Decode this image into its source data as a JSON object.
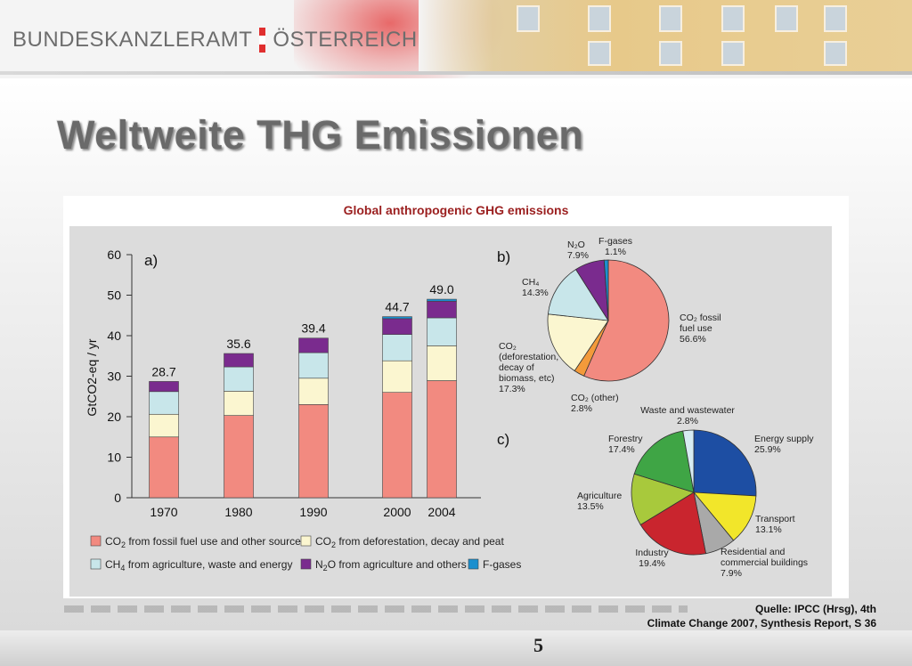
{
  "header": {
    "brand_left": "BUNDESKANZLERAMT",
    "brand_right": "ÖSTERREICH",
    "flag_colors": [
      "#e02f2f",
      "#ffffff",
      "#e02f2f"
    ]
  },
  "slide": {
    "title": "Weltweite THG Emissionen",
    "source_line1": "Quelle: IPCC (Hrsg), 4th",
    "source_line2": "Climate Change 2007, Synthesis Report, S 36",
    "page_number": "5"
  },
  "figure_title": "Global anthropogenic GHG emissions",
  "chart_data": [
    {
      "type": "bar",
      "panel_label": "a)",
      "ylabel": "GtCO2-eq / yr",
      "ylim": [
        0,
        60
      ],
      "yticks": [
        0,
        10,
        20,
        30,
        40,
        50,
        60
      ],
      "categories": [
        "1970",
        "1980",
        "1990",
        "2000",
        "2004"
      ],
      "stacked": true,
      "totals": [
        "28.7",
        "35.6",
        "39.4",
        "44.7",
        "49.0"
      ],
      "series": [
        {
          "name": "CO2 from fossil fuel use and other sources",
          "color": "#f28a80",
          "values": [
            15.0,
            20.3,
            23.0,
            26.0,
            28.9
          ]
        },
        {
          "name": "CO2 from deforestation, decay and peat",
          "color": "#fbf6d0",
          "values": [
            5.6,
            6.0,
            6.5,
            7.8,
            8.6
          ]
        },
        {
          "name": "CH4 from agriculture, waste and energy",
          "color": "#c8e6ea",
          "values": [
            5.6,
            6.0,
            6.3,
            6.5,
            6.9
          ]
        },
        {
          "name": "N2O from agriculture and others",
          "color": "#7a2b8e",
          "values": [
            2.5,
            3.3,
            3.6,
            3.9,
            4.1
          ]
        },
        {
          "name": "F-gases",
          "color": "#1b8fce",
          "values": [
            0.0,
            0.0,
            0.0,
            0.5,
            0.5
          ]
        }
      ],
      "legend": [
        {
          "label_main": "CO",
          "label_sub": "2",
          "label_rest": " from fossil fuel use and other sources",
          "color": "#f28a80"
        },
        {
          "label_main": "CO",
          "label_sub": "2",
          "label_rest": " from deforestation, decay and peat",
          "color": "#fbf6d0"
        },
        {
          "label_main": "CH",
          "label_sub": "4",
          "label_rest": " from agriculture, waste and energy",
          "color": "#c8e6ea"
        },
        {
          "label_main": "N",
          "label_sub": "2",
          "label_rest": "O from agriculture and others",
          "color": "#7a2b8e"
        },
        {
          "label_main": "F-gases",
          "label_sub": "",
          "label_rest": "",
          "color": "#1b8fce"
        }
      ]
    },
    {
      "type": "pie",
      "panel_label": "b)",
      "slices": [
        {
          "lines": [
            "CO₂ fossil",
            "fuel use",
            "56.6%"
          ],
          "value": 56.6,
          "color": "#f28a80"
        },
        {
          "lines": [
            "CO₂ (other)",
            "2.8%"
          ],
          "value": 2.8,
          "color": "#f39a3a"
        },
        {
          "lines": [
            "CO₂",
            "(deforestation,",
            "decay of",
            "biomass, etc)",
            "17.3%"
          ],
          "value": 17.3,
          "color": "#fbf6d0"
        },
        {
          "lines": [
            "CH₄",
            "14.3%"
          ],
          "value": 14.3,
          "color": "#c8e6ea"
        },
        {
          "lines": [
            "N₂O",
            "7.9%"
          ],
          "value": 7.9,
          "color": "#7a2b8e"
        },
        {
          "lines": [
            "F-gases",
            "1.1%"
          ],
          "value": 1.1,
          "color": "#1b8fce"
        }
      ]
    },
    {
      "type": "pie",
      "panel_label": "c)",
      "slices": [
        {
          "lines": [
            "Energy supply",
            "25.9%"
          ],
          "value": 25.9,
          "color": "#1d4ea3"
        },
        {
          "lines": [
            "Transport",
            "13.1%"
          ],
          "value": 13.1,
          "color": "#f2e62a"
        },
        {
          "lines": [
            "Residential and",
            "commercial buildings",
            "7.9%"
          ],
          "value": 7.9,
          "color": "#a9a9a9"
        },
        {
          "lines": [
            "Industry",
            "19.4%"
          ],
          "value": 19.4,
          "color": "#c9252e"
        },
        {
          "lines": [
            "Agriculture",
            "13.5%"
          ],
          "value": 13.5,
          "color": "#a8c93c"
        },
        {
          "lines": [
            "Forestry",
            "17.4%"
          ],
          "value": 17.4,
          "color": "#3fa545"
        },
        {
          "lines": [
            "Waste and wastewater",
            "2.8%"
          ],
          "value": 2.8,
          "color": "#d7ecf2"
        }
      ]
    }
  ]
}
